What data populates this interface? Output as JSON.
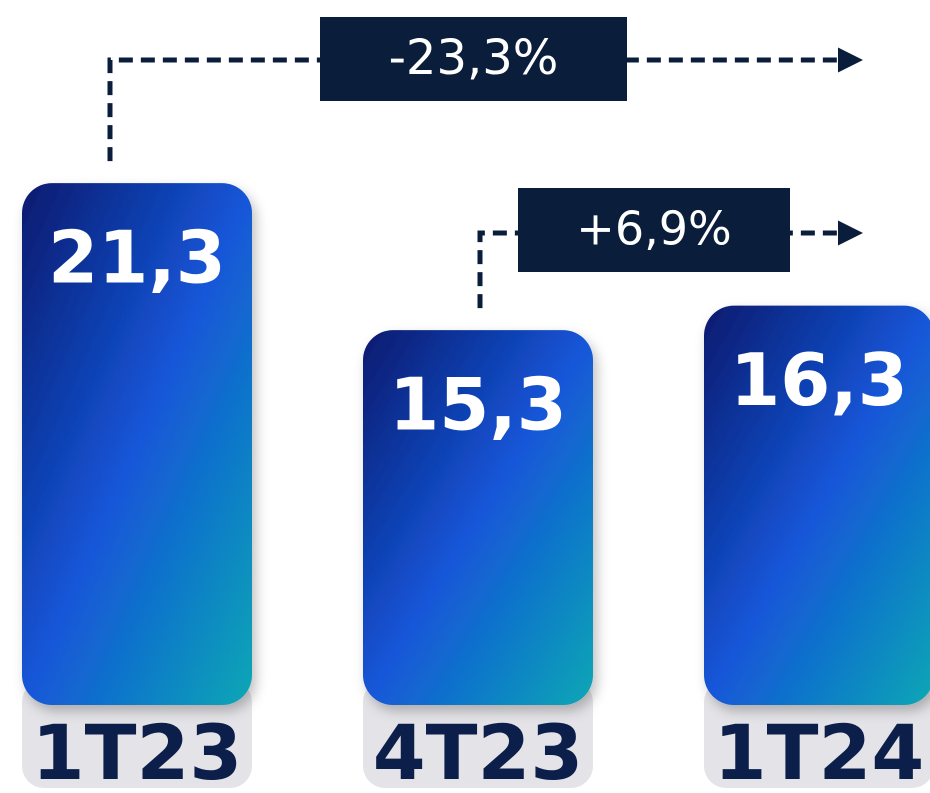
{
  "chart_data": {
    "type": "bar",
    "categories": [
      "1T23",
      "4T23",
      "1T24"
    ],
    "values": [
      21.3,
      15.3,
      16.3
    ],
    "value_labels": [
      "21,3",
      "15,3",
      "16,3"
    ],
    "annotations": [
      {
        "text": "-23,3%"
      },
      {
        "text": "+6,9%"
      }
    ],
    "color": "#1a4fd6",
    "label_color": "#0c1e4a",
    "annotation_color": "#0a1e3c"
  }
}
